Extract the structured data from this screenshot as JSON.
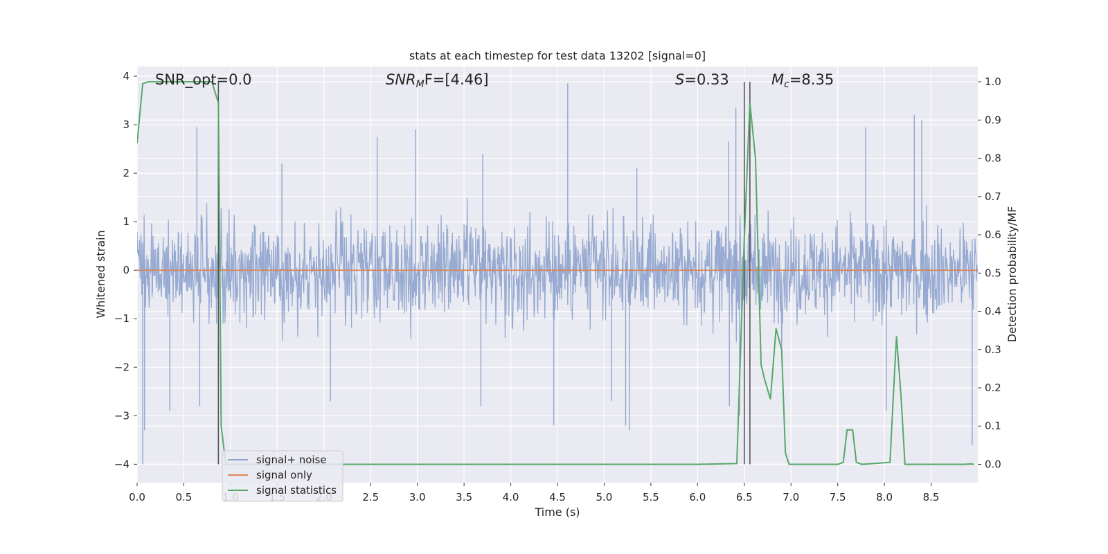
{
  "chart_data": {
    "type": "line",
    "title": "stats at each timestep for test data 13202 [signal=0]",
    "xlabel": "Time (s)",
    "ylabel_left": "Whitened strain",
    "ylabel_right": "Detection probability/MF",
    "xlim": [
      0,
      9.0
    ],
    "ylim_left": [
      -4.38,
      4.2
    ],
    "ylim_right": [
      -0.048,
      1.04
    ],
    "x_ticks": [
      0.0,
      0.5,
      1.0,
      1.5,
      2.0,
      2.5,
      3.0,
      3.5,
      4.0,
      4.5,
      5.0,
      5.5,
      6.0,
      6.5,
      7.0,
      7.5,
      8.0,
      8.5
    ],
    "x_tick_labels": [
      "0.0",
      "0.5",
      "1.0",
      "1.5",
      "2.0",
      "2.5",
      "3.0",
      "3.5",
      "4.0",
      "4.5",
      "5.0",
      "5.5",
      "6.0",
      "6.5",
      "7.0",
      "7.5",
      "8.0",
      "8.5"
    ],
    "y_left_ticks": [
      4,
      3,
      2,
      1,
      0,
      -1,
      -2,
      -3,
      -4
    ],
    "y_left_tick_labels": [
      "4",
      "3",
      "2",
      "1",
      "0",
      "−1",
      "−2",
      "−3",
      "−4"
    ],
    "y_right_ticks": [
      1.0,
      0.9,
      0.8,
      0.7,
      0.6,
      0.5,
      0.4,
      0.3,
      0.2,
      0.1,
      0.0
    ],
    "y_right_tick_labels": [
      "1.0",
      "0.9",
      "0.8",
      "0.7",
      "0.6",
      "0.5",
      "0.4",
      "0.3",
      "0.2",
      "0.1",
      "0.0"
    ],
    "grid": true,
    "legend_position": "lower-left",
    "annotations": {
      "snr_opt": "SNR_opt=0.0",
      "snr_mf_main": "SNR",
      "snr_mf_sub": "M",
      "snr_mf_tail": "F=[4.46]",
      "s_main": "S",
      "s_tail": "=0.33",
      "mc_main": "M",
      "mc_sub": "c",
      "mc_tail": "=8.35"
    },
    "vertical_lines_x": [
      0.87,
      6.5,
      6.56
    ],
    "series": [
      {
        "name": "signal+ noise",
        "color": "#92a6cf",
        "kind": "noise",
        "x_range": [
          0,
          9.0
        ],
        "spikes": [
          {
            "x": 0.06,
            "y": -4.0
          },
          {
            "x": 0.08,
            "y": -3.3
          },
          {
            "x": 0.64,
            "y": 2.95
          },
          {
            "x": 0.67,
            "y": -2.8
          },
          {
            "x": 0.87,
            "y": 2.85
          },
          {
            "x": 0.35,
            "y": -2.9
          },
          {
            "x": 1.55,
            "y": 2.2
          },
          {
            "x": 2.07,
            "y": -2.7
          },
          {
            "x": 2.57,
            "y": 2.75
          },
          {
            "x": 2.98,
            "y": 2.9
          },
          {
            "x": 3.7,
            "y": 2.4
          },
          {
            "x": 3.68,
            "y": -2.8
          },
          {
            "x": 4.46,
            "y": -3.2
          },
          {
            "x": 4.61,
            "y": 3.85
          },
          {
            "x": 5.08,
            "y": -2.7
          },
          {
            "x": 5.23,
            "y": -3.2
          },
          {
            "x": 5.27,
            "y": -3.3
          },
          {
            "x": 5.35,
            "y": 2.1
          },
          {
            "x": 6.33,
            "y": 2.65
          },
          {
            "x": 6.34,
            "y": -2.8
          },
          {
            "x": 6.41,
            "y": 3.35
          },
          {
            "x": 6.45,
            "y": -3.0
          },
          {
            "x": 7.8,
            "y": 2.95
          },
          {
            "x": 8.02,
            "y": -2.9
          },
          {
            "x": 8.32,
            "y": 3.2
          },
          {
            "x": 8.4,
            "y": 3.1
          },
          {
            "x": 8.94,
            "y": -3.6
          }
        ]
      },
      {
        "name": "signal only",
        "color": "#dd8452",
        "kind": "flat",
        "x": [
          0,
          9.0
        ],
        "y": [
          0,
          0
        ]
      },
      {
        "name": "signal statistics",
        "color": "#55a868",
        "kind": "line",
        "x": [
          0.0,
          0.06,
          0.12,
          0.2,
          0.5,
          0.8,
          0.87,
          0.9,
          0.95,
          1.0,
          6.0,
          6.42,
          6.5,
          6.56,
          6.62,
          6.68,
          6.72,
          6.78,
          6.84,
          6.9,
          6.94,
          6.98,
          7.04,
          7.5,
          7.56,
          7.6,
          7.66,
          7.7,
          7.76,
          8.06,
          8.1,
          8.13,
          8.18,
          8.22,
          8.26,
          8.86,
          8.92,
          8.96
        ],
        "y": [
          0.84,
          0.995,
          1.0,
          1.0,
          1.0,
          1.0,
          0.945,
          0.1,
          0.0,
          0.0,
          0.0,
          0.002,
          0.59,
          0.945,
          0.8,
          0.26,
          0.22,
          0.17,
          0.355,
          0.3,
          0.03,
          0.0,
          0.0,
          0.0,
          0.005,
          0.09,
          0.09,
          0.005,
          0.0,
          0.005,
          0.2,
          0.335,
          0.17,
          0.0,
          0.0,
          0.0,
          0.001,
          0.0
        ]
      }
    ]
  }
}
